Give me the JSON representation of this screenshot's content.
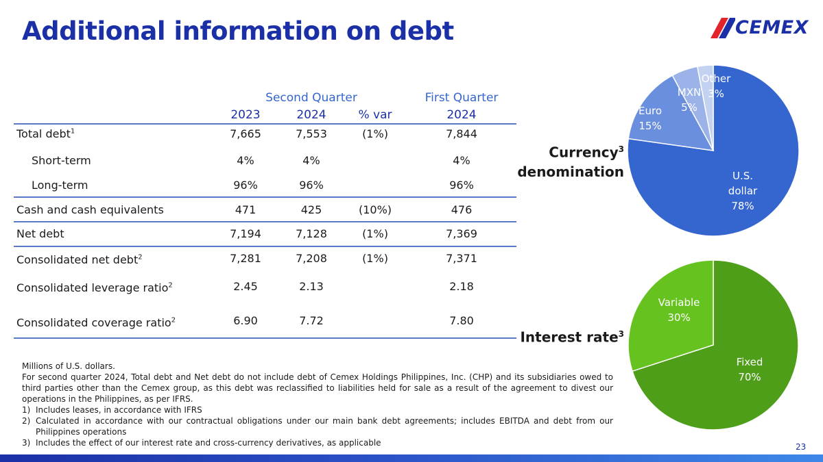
{
  "title": "Additional information on debt",
  "logo_text": "CEMEX",
  "page_number": "23",
  "table": {
    "group_headers": [
      "Second Quarter",
      "First Quarter"
    ],
    "col_headers": [
      "2023",
      "2024",
      "% var",
      "2024"
    ],
    "rows": [
      {
        "label": "Total debt",
        "sup": "1",
        "values": [
          "7,665",
          "7,553",
          "(1%)",
          "7,844"
        ]
      },
      {
        "label": "Short-term",
        "sup": "",
        "values": [
          "4%",
          "4%",
          "",
          "4%"
        ]
      },
      {
        "label": "Long-term",
        "sup": "",
        "values": [
          "96%",
          "96%",
          "",
          "96%"
        ]
      },
      {
        "label": "Cash and cash equivalents",
        "sup": "",
        "values": [
          "471",
          "425",
          "(10%)",
          "476"
        ]
      },
      {
        "label": "Net debt",
        "sup": "",
        "values": [
          "7,194",
          "7,128",
          "(1%)",
          "7,369"
        ]
      },
      {
        "label": "Consolidated net debt",
        "sup": "2",
        "values": [
          "7,281",
          "7,208",
          "(1%)",
          "7,371"
        ]
      },
      {
        "label": "Consolidated leverage ratio",
        "sup": "2",
        "values": [
          "2.45",
          "2.13",
          "",
          "2.18"
        ]
      },
      {
        "label": "Consolidated coverage ratio",
        "sup": "2",
        "values": [
          "6.90",
          "7.72",
          "",
          "7.80"
        ]
      }
    ]
  },
  "notes": {
    "units": "Millions of U.S. dollars.",
    "disclaimer": "For second quarter 2024, Total debt and Net debt do not include debt of Cemex Holdings Philippines, Inc. (CHP) and its subsidiaries owed to third parties other than the Cemex group, as this debt was reclassified to liabilities held for sale as a result of the agreement to divest our operations in the Philippines, as per IFRS.",
    "footnotes": [
      {
        "num": "1)",
        "text": "Includes leases, in accordance with IFRS"
      },
      {
        "num": "2)",
        "text": "Calculated in accordance with our contractual obligations under our main bank debt agreements; includes EBITDA and debt from our Philippines operations"
      },
      {
        "num": "3)",
        "text": "Includes the effect of our interest rate and cross-currency derivatives, as applicable"
      }
    ]
  },
  "chart_data": [
    {
      "type": "pie",
      "title": "Currency denomination",
      "title_parts": [
        "Currency",
        "denomination"
      ],
      "title_sup": "3",
      "slices": [
        {
          "label": "U.S. dollar",
          "label_lines": [
            "U.S.",
            "dollar"
          ],
          "value": 78,
          "value_text": "78%",
          "color": "#3566d0"
        },
        {
          "label": "Euro",
          "label_lines": [
            "Euro"
          ],
          "value": 15,
          "value_text": "15%",
          "color": "#6a8fde"
        },
        {
          "label": "MXN",
          "label_lines": [
            "MXN"
          ],
          "value": 5,
          "value_text": "5%",
          "color": "#9bb3e8"
        },
        {
          "label": "Other",
          "label_lines": [
            "Other"
          ],
          "value": 3,
          "value_text": "3%",
          "color": "#c4d2f2"
        }
      ]
    },
    {
      "type": "pie",
      "title": "Interest rate",
      "title_parts": [
        "Interest rate"
      ],
      "title_sup": "3",
      "slices": [
        {
          "label": "Fixed",
          "label_lines": [
            "Fixed"
          ],
          "value": 70,
          "value_text": "70%",
          "color": "#4e9e1a"
        },
        {
          "label": "Variable",
          "label_lines": [
            "Variable"
          ],
          "value": 30,
          "value_text": "30%",
          "color": "#66c21f"
        }
      ]
    }
  ]
}
